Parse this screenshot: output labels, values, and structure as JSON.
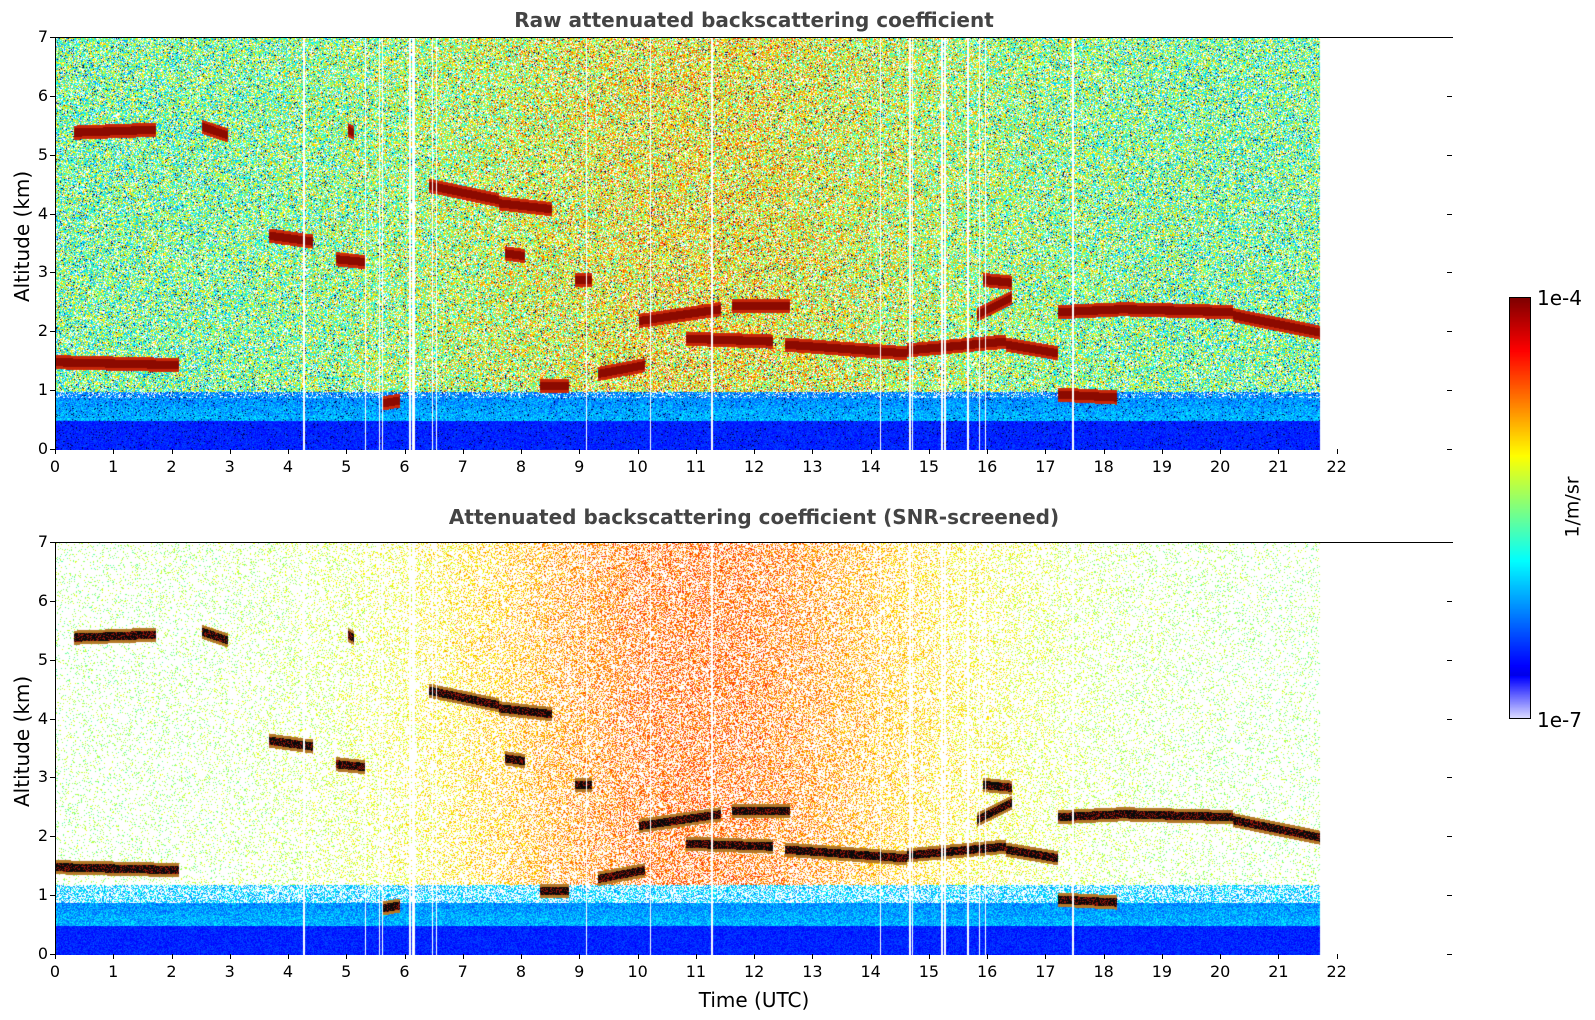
{
  "chart_data": [
    {
      "type": "heatmap",
      "title": "Raw attenuated backscattering coefficient",
      "xlabel": "",
      "ylabel": "Altitude (km)",
      "xlim": [
        0,
        24
      ],
      "ylim": [
        0,
        7
      ],
      "x_ticks": [
        "0",
        "1",
        "2",
        "3",
        "4",
        "5",
        "6",
        "7",
        "8",
        "9",
        "10",
        "11",
        "12",
        "13",
        "14",
        "15",
        "16",
        "17",
        "18",
        "19",
        "20",
        "21",
        "22"
      ],
      "y_ticks": [
        "0",
        "1",
        "2",
        "3",
        "4",
        "5",
        "6",
        "7"
      ],
      "data_time_range": [
        0,
        21.7
      ],
      "dropout_times": [
        4.25,
        5.3,
        5.55,
        5.6,
        6.07,
        6.12,
        6.15,
        6.45,
        6.52,
        9.1,
        10.2,
        11.25,
        14.15,
        14.65,
        14.7,
        15.2,
        15.25,
        15.65,
        15.85,
        15.95,
        17.45
      ],
      "cloud_layers": [
        {
          "t0": 0.0,
          "t1": 2.1,
          "alt0": 1.5,
          "alt1": 1.45
        },
        {
          "t0": 0.3,
          "t1": 1.7,
          "alt0": 5.4,
          "alt1": 5.45
        },
        {
          "t0": 2.5,
          "t1": 2.95,
          "alt0": 5.5,
          "alt1": 5.35
        },
        {
          "t0": 5.0,
          "t1": 5.1,
          "alt0": 5.45,
          "alt1": 5.4
        },
        {
          "t0": 3.65,
          "t1": 4.4,
          "alt0": 3.65,
          "alt1": 3.55
        },
        {
          "t0": 4.8,
          "t1": 5.3,
          "alt0": 3.25,
          "alt1": 3.2
        },
        {
          "t0": 6.4,
          "t1": 7.6,
          "alt0": 4.5,
          "alt1": 4.25
        },
        {
          "t0": 7.6,
          "t1": 8.5,
          "alt0": 4.2,
          "alt1": 4.1
        },
        {
          "t0": 7.7,
          "t1": 8.05,
          "alt0": 3.35,
          "alt1": 3.3
        },
        {
          "t0": 8.9,
          "t1": 9.2,
          "alt0": 2.9,
          "alt1": 2.9
        },
        {
          "t0": 9.3,
          "t1": 10.1,
          "alt0": 1.3,
          "alt1": 1.45
        },
        {
          "t0": 10.0,
          "t1": 11.4,
          "alt0": 2.2,
          "alt1": 2.4
        },
        {
          "t0": 11.6,
          "t1": 12.6,
          "alt0": 2.45,
          "alt1": 2.45
        },
        {
          "t0": 10.8,
          "t1": 12.3,
          "alt0": 1.9,
          "alt1": 1.85
        },
        {
          "t0": 12.5,
          "t1": 14.6,
          "alt0": 1.8,
          "alt1": 1.65
        },
        {
          "t0": 14.6,
          "t1": 16.3,
          "alt0": 1.7,
          "alt1": 1.85
        },
        {
          "t0": 16.3,
          "t1": 17.2,
          "alt0": 1.8,
          "alt1": 1.65
        },
        {
          "t0": 15.8,
          "t1": 16.4,
          "alt0": 2.3,
          "alt1": 2.6
        },
        {
          "t0": 15.9,
          "t1": 16.4,
          "alt0": 2.9,
          "alt1": 2.85
        },
        {
          "t0": 17.2,
          "t1": 18.2,
          "alt0": 0.95,
          "alt1": 0.9
        },
        {
          "t0": 17.2,
          "t1": 18.3,
          "alt0": 2.35,
          "alt1": 2.4
        },
        {
          "t0": 18.3,
          "t1": 20.2,
          "alt0": 2.4,
          "alt1": 2.35
        },
        {
          "t0": 20.2,
          "t1": 21.7,
          "alt0": 2.3,
          "alt1": 2.0
        },
        {
          "t0": 8.3,
          "t1": 8.8,
          "alt0": 1.1,
          "alt1": 1.1
        },
        {
          "t0": 5.6,
          "t1": 5.9,
          "alt0": 0.8,
          "alt1": 0.85
        }
      ]
    },
    {
      "type": "heatmap",
      "title": "Attenuated backscattering coefficient (SNR-screened)",
      "xlabel": "Time (UTC)",
      "ylabel": "Altitude (km)",
      "xlim": [
        0,
        24
      ],
      "ylim": [
        0,
        7
      ],
      "x_ticks": [
        "0",
        "1",
        "2",
        "3",
        "4",
        "5",
        "6",
        "7",
        "8",
        "9",
        "10",
        "11",
        "12",
        "13",
        "14",
        "15",
        "16",
        "17",
        "18",
        "19",
        "20",
        "21",
        "22"
      ],
      "y_ticks": [
        "0",
        "1",
        "2",
        "3",
        "4",
        "5",
        "6",
        "7"
      ],
      "data_time_range": [
        0,
        21.7
      ],
      "screened": true
    }
  ],
  "colorbar": {
    "max_label": "1e-4",
    "min_label": "1e-7",
    "unit": "1/m/sr",
    "colormap": "jet"
  }
}
